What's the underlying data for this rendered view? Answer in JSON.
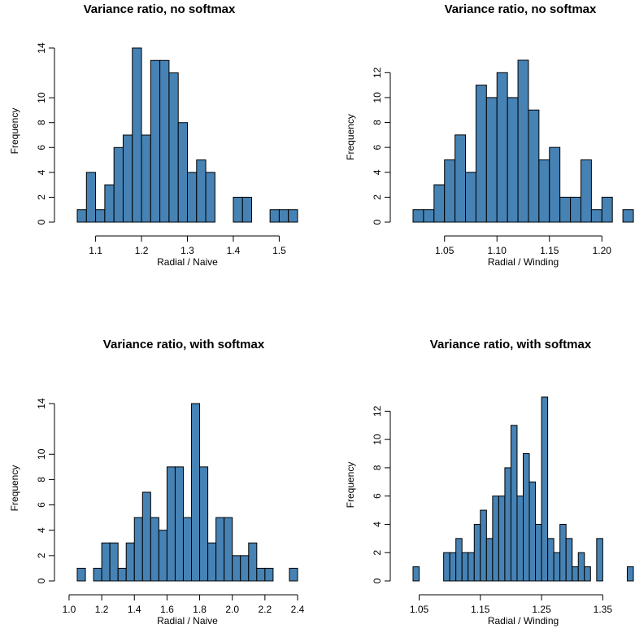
{
  "chart_data": [
    {
      "type": "bar",
      "title": "Variance ratio, no softmax",
      "xlabel": "Radial / Naive",
      "ylabel": "Frequency",
      "bar_color": "#4682b4",
      "bin_width": 0.02,
      "bin_start": 1.06,
      "values": [
        1,
        4,
        1,
        3,
        6,
        7,
        14,
        7,
        13,
        13,
        12,
        8,
        4,
        5,
        4,
        0,
        0,
        2,
        2,
        0,
        0,
        1,
        1,
        1
      ],
      "xlim": [
        1.06,
        1.54
      ],
      "ylim": [
        0,
        14
      ],
      "xticks": [
        1.1,
        1.2,
        1.3,
        1.4,
        1.5
      ],
      "xtick_labels": [
        "1.1",
        "1.2",
        "1.3",
        "1.4",
        "1.5"
      ],
      "yticks": [
        0,
        2,
        4,
        6,
        8,
        10,
        14
      ],
      "ytick_labels": [
        "0",
        "2",
        "4",
        "6",
        "8",
        "10",
        "14"
      ]
    },
    {
      "type": "bar",
      "title": "Variance ratio, no softmax",
      "xlabel": "Radial / Winding",
      "ylabel": "Frequency",
      "bar_color": "#4682b4",
      "bin_width": 0.01,
      "bin_start": 1.02,
      "values": [
        1,
        1,
        3,
        5,
        7,
        4,
        11,
        10,
        12,
        10,
        13,
        9,
        5,
        6,
        2,
        2,
        5,
        1,
        2,
        0,
        1
      ],
      "xlim": [
        1.02,
        1.23
      ],
      "ylim": [
        0,
        13
      ],
      "xticks": [
        1.05,
        1.1,
        1.15,
        1.2
      ],
      "xtick_labels": [
        "1.05",
        "1.10",
        "1.15",
        "1.20"
      ],
      "yticks": [
        0,
        2,
        4,
        6,
        8,
        10,
        12
      ],
      "ytick_labels": [
        "0",
        "2",
        "4",
        "6",
        "8",
        "10",
        "12"
      ]
    },
    {
      "type": "bar",
      "title": "Variance ratio, with softmax",
      "xlabel": "Radial / Naive",
      "ylabel": "Frequency",
      "bar_color": "#4682b4",
      "bin_width": 0.05,
      "bin_start": 1.05,
      "values": [
        1,
        0,
        1,
        3,
        3,
        1,
        3,
        5,
        7,
        5,
        4,
        9,
        9,
        5,
        14,
        9,
        3,
        5,
        5,
        2,
        2,
        3,
        1,
        1,
        0,
        0,
        1
      ],
      "xlim": [
        1.05,
        2.4
      ],
      "ylim": [
        0,
        14
      ],
      "xticks": [
        1.0,
        1.2,
        1.4,
        1.6,
        1.8,
        2.0,
        2.2,
        2.4
      ],
      "xtick_labels": [
        "1.0",
        "1.2",
        "1.4",
        "1.6",
        "1.8",
        "2.0",
        "2.2",
        "2.4"
      ],
      "yticks": [
        0,
        2,
        4,
        6,
        8,
        10,
        14
      ],
      "ytick_labels": [
        "0",
        "2",
        "4",
        "6",
        "8",
        "10",
        "14"
      ]
    },
    {
      "type": "bar",
      "title": "Variance ratio, with softmax",
      "xlabel": "Radial / Winding",
      "ylabel": "Frequency",
      "bar_color": "#4682b4",
      "bin_width": 0.01,
      "bin_start": 1.04,
      "values": [
        1,
        0,
        0,
        0,
        0,
        2,
        2,
        3,
        2,
        2,
        4,
        5,
        3,
        6,
        6,
        8,
        11,
        6,
        9,
        7,
        4,
        13,
        3,
        2,
        4,
        3,
        1,
        2,
        1,
        0,
        3,
        0,
        0,
        0,
        0,
        1
      ],
      "xlim": [
        1.04,
        1.4
      ],
      "ylim": [
        0,
        13
      ],
      "xticks": [
        1.05,
        1.15,
        1.25,
        1.35
      ],
      "xtick_labels": [
        "1.05",
        "1.15",
        "1.25",
        "1.35"
      ],
      "yticks": [
        0,
        2,
        4,
        6,
        8,
        10,
        12
      ],
      "ytick_labels": [
        "0",
        "2",
        "4",
        "6",
        "8",
        "10",
        "12"
      ]
    }
  ]
}
